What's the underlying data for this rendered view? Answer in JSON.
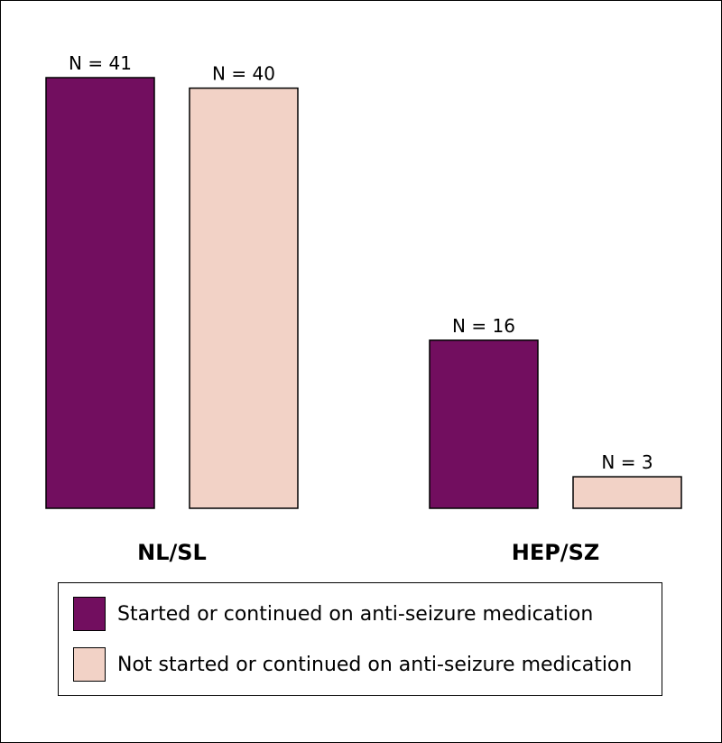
{
  "chart_data": {
    "type": "bar",
    "categories": [
      "NL/SL",
      "HEP/SZ"
    ],
    "series": [
      {
        "name": "Started or continued on anti-seizure medication",
        "values": [
          41,
          16
        ],
        "labels": [
          "N = 41",
          "N = 16"
        ],
        "color": "#720e5f"
      },
      {
        "name": "Not started or continued on anti-seizure medication",
        "values": [
          40,
          3
        ],
        "labels": [
          "N = 40",
          "N = 3"
        ],
        "color": "#f2d2c6"
      }
    ],
    "title": "",
    "xlabel": "",
    "ylabel": "",
    "ylim": [
      0,
      41
    ],
    "grid": false,
    "legend_position": "bottom"
  }
}
